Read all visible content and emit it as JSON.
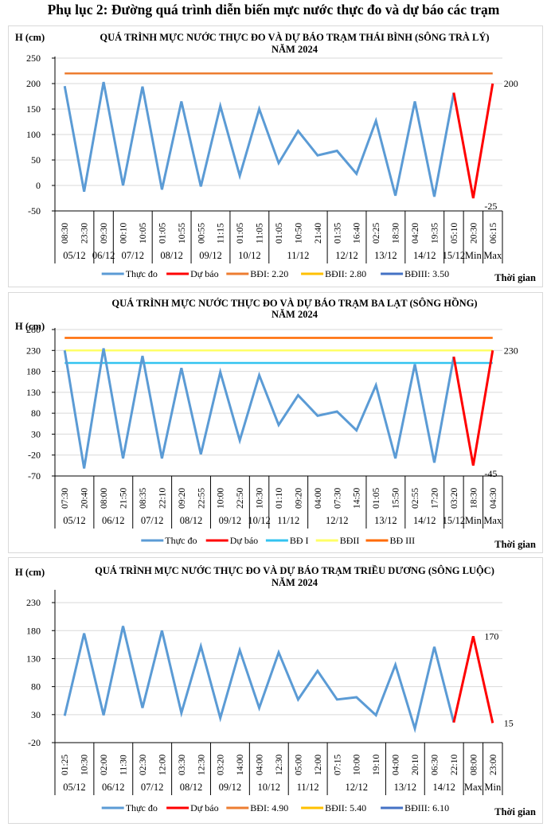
{
  "page_title": "Phụ lục 2: Đường quá trình diễn biến mực nước thực đo và dự báo các trạm",
  "chart_data": [
    {
      "type": "line",
      "title": "QUÁ TRÌNH MỰC NƯỚC THỰC ĐO VÀ DỰ BÁO TRẠM THÁI BÌNH (SÔNG TRÀ LÝ)",
      "subtitle": "NĂM 2024",
      "ylabel": "H (cm)",
      "xlabel": "Thời gian",
      "ylim": [
        -50,
        250
      ],
      "yticks": [
        250,
        200,
        150,
        100,
        50,
        0,
        -50
      ],
      "grid": true,
      "times": [
        "08:30",
        "23:30",
        "09:30",
        "00:10",
        "10:05",
        "01:05",
        "10:55",
        "00:55",
        "11:15",
        "01:05",
        "11:05",
        "01:05",
        "10:50",
        "21:40",
        "01:35",
        "16:40",
        "02:25",
        "18:30",
        "04:20",
        "19:35",
        "05:10",
        "20:30",
        "06:15"
      ],
      "date_groups": [
        {
          "label": "05/12",
          "count": 2
        },
        {
          "label": "06/12",
          "count": 1
        },
        {
          "label": "07/12",
          "count": 2
        },
        {
          "label": "08/12",
          "count": 2
        },
        {
          "label": "09/12",
          "count": 2
        },
        {
          "label": "10/12",
          "count": 2
        },
        {
          "label": "11/12",
          "count": 3
        },
        {
          "label": "12/12",
          "count": 2
        },
        {
          "label": "13/12",
          "count": 2
        },
        {
          "label": "14/12",
          "count": 2
        },
        {
          "label": "15/12",
          "count": 1
        },
        {
          "label": "Min",
          "count": 1
        },
        {
          "label": "Max",
          "count": 1
        }
      ],
      "series": [
        {
          "name": "Thực đo",
          "color": "#5b9bd5",
          "start": 0,
          "values": [
            195,
            -12,
            203,
            0,
            194,
            -8,
            165,
            -2,
            156,
            19,
            150,
            44,
            107,
            59,
            68,
            23,
            127,
            -20,
            165,
            -22,
            182
          ]
        },
        {
          "name": "Dự báo",
          "color": "#ff0000",
          "start": 20,
          "values": [
            182,
            -25,
            200
          ]
        }
      ],
      "thresholds": [
        {
          "name": "BĐI: 2.20",
          "color": "#ed7d31",
          "value": 220,
          "show_line": true
        },
        {
          "name": "BĐII: 2.80",
          "color": "#ffc000",
          "value": null,
          "show_line": false
        },
        {
          "name": "BĐIII: 3.50",
          "color": "#4472c4",
          "value": null,
          "show_line": false
        }
      ],
      "annotations": [
        {
          "index": 21,
          "text": "-25"
        },
        {
          "index": 22,
          "text": "200"
        }
      ],
      "legend": "bottom"
    },
    {
      "type": "line",
      "title": "QUÁ TRÌNH MỰC NƯỚC THỰC ĐO VÀ DỰ BÁO TRẠM BA LẠT (SÔNG HỒNG)",
      "subtitle": "NĂM 2024",
      "ylabel": "H (cm)",
      "xlabel": "Thời gian",
      "ylim": [
        -70,
        280
      ],
      "yticks": [
        280,
        230,
        180,
        130,
        80,
        30,
        -20,
        -70
      ],
      "grid": true,
      "times": [
        "07:30",
        "20:40",
        "08:00",
        "21:50",
        "08:35",
        "22:10",
        "09:20",
        "22:55",
        "10:00",
        "22:50",
        "10:30",
        "01:10",
        "09:20",
        "04:00",
        "07:30",
        "14:50",
        "01:05",
        "15:50",
        "02:55",
        "17:20",
        "03:20",
        "18:30",
        "04:30"
      ],
      "date_groups": [
        {
          "label": "05/12",
          "count": 2
        },
        {
          "label": "06/12",
          "count": 2
        },
        {
          "label": "07/12",
          "count": 2
        },
        {
          "label": "08/12",
          "count": 2
        },
        {
          "label": "09/12",
          "count": 2
        },
        {
          "label": "10/12",
          "count": 1
        },
        {
          "label": "11/12",
          "count": 2
        },
        {
          "label": "12/12",
          "count": 3
        },
        {
          "label": "13/12",
          "count": 2
        },
        {
          "label": "14/12",
          "count": 2
        },
        {
          "label": "15/12",
          "count": 1
        },
        {
          "label": "Min",
          "count": 1
        },
        {
          "label": "Max",
          "count": 1
        }
      ],
      "series": [
        {
          "name": "Thực đo",
          "color": "#5b9bd5",
          "start": 0,
          "values": [
            230,
            -52,
            235,
            -28,
            217,
            -28,
            188,
            -18,
            178,
            15,
            171,
            52,
            123,
            74,
            84,
            39,
            147,
            -28,
            197,
            -38,
            215
          ]
        },
        {
          "name": "Dự báo",
          "color": "#ff0000",
          "start": 20,
          "values": [
            215,
            -45,
            230
          ]
        }
      ],
      "thresholds": [
        {
          "name": "BĐ I",
          "color": "#33c3f0",
          "value": 200,
          "show_line": true
        },
        {
          "name": "BĐII",
          "color": "#ffff66",
          "value": 230,
          "show_line": true
        },
        {
          "name": "BĐ III",
          "color": "#ff6a00",
          "value": 260,
          "show_line": true
        }
      ],
      "annotations": [
        {
          "index": 21,
          "text": "-45"
        },
        {
          "index": 22,
          "text": "230"
        }
      ],
      "legend": "bottom"
    },
    {
      "type": "line",
      "title": "QUÁ TRÌNH MỰC NƯỚC THỰC ĐO VÀ DỰ BÁO TRẠM TRIỀU DƯƠNG (SÔNG LUỘC)",
      "subtitle": "NĂM 2024",
      "ylabel": "H (cm)",
      "xlabel": "Thời gian",
      "ylim": [
        -20,
        250
      ],
      "yticks": [
        230,
        180,
        130,
        80,
        30,
        -20
      ],
      "grid": true,
      "times": [
        "01:25",
        "10:30",
        "02:00",
        "11:30",
        "02:30",
        "12:00",
        "03:30",
        "12:30",
        "03:20",
        "14:00",
        "04:00",
        "12:30",
        "05:00",
        "12:00",
        "07:15",
        "10:00",
        "19:10",
        "04:00",
        "20:10",
        "06:30",
        "22:10",
        "08:00",
        "23:00"
      ],
      "date_groups": [
        {
          "label": "05/12",
          "count": 2
        },
        {
          "label": "06/12",
          "count": 2
        },
        {
          "label": "07/12",
          "count": 2
        },
        {
          "label": "08/12",
          "count": 2
        },
        {
          "label": "09/12",
          "count": 2
        },
        {
          "label": "10/12",
          "count": 2
        },
        {
          "label": "11/12",
          "count": 2
        },
        {
          "label": "12/12",
          "count": 3
        },
        {
          "label": "13/12",
          "count": 2
        },
        {
          "label": "14/12",
          "count": 2
        },
        {
          "label": "Max",
          "count": 1
        },
        {
          "label": "Min",
          "count": 1
        }
      ],
      "series": [
        {
          "name": "Thực đo",
          "color": "#5b9bd5",
          "start": 0,
          "values": [
            28,
            175,
            29,
            188,
            42,
            180,
            33,
            152,
            24,
            145,
            42,
            141,
            57,
            108,
            57,
            61,
            29,
            119,
            5,
            151,
            16
          ]
        },
        {
          "name": "Dự báo",
          "color": "#ff0000",
          "start": 20,
          "values": [
            16,
            170,
            15
          ]
        }
      ],
      "thresholds": [
        {
          "name": "BĐI: 4.90",
          "color": "#ed7d31",
          "value": null,
          "show_line": false
        },
        {
          "name": "BĐII: 5.40",
          "color": "#ffc000",
          "value": null,
          "show_line": false
        },
        {
          "name": "BĐIII: 6.10",
          "color": "#4472c4",
          "value": null,
          "show_line": false
        }
      ],
      "annotations": [
        {
          "index": 21,
          "text": "170"
        },
        {
          "index": 22,
          "text": "15"
        }
      ],
      "legend": "bottom"
    }
  ]
}
